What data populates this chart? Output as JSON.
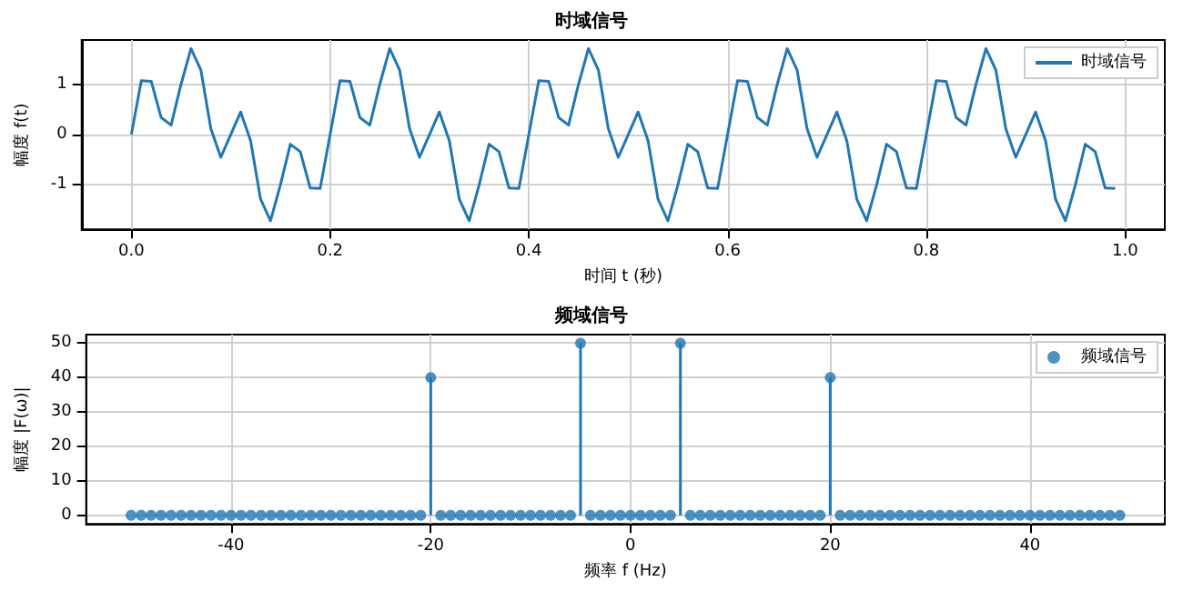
{
  "chart_data": [
    {
      "type": "line",
      "title": "时域信号",
      "xlabel": "时间 t (秒)",
      "ylabel": "幅度 f(t)",
      "xlim": [
        -0.05,
        1.04
      ],
      "ylim": [
        -1.88,
        1.88
      ],
      "xticks": [
        {
          "value": 0,
          "label": "0.0"
        },
        0.2,
        0.4,
        0.6,
        0.8,
        {
          "value": 1,
          "label": "1.0"
        }
      ],
      "yticks": [
        -1,
        0,
        1
      ],
      "grid": true,
      "legend": "top right",
      "marker": "none",
      "line_style": "solid",
      "series": [
        {
          "name": "时域信号",
          "color": "#1f77b4",
          "x": [
            0,
            0.01,
            0.02,
            0.03,
            0.04,
            0.05,
            0.06,
            0.07,
            0.08,
            0.09,
            0.1,
            0.11,
            0.12,
            0.13,
            0.14,
            0.15,
            0.16,
            0.17,
            0.18,
            0.19,
            0.2,
            0.21,
            0.22,
            0.23,
            0.24,
            0.25,
            0.26,
            0.27,
            0.28,
            0.29,
            0.3,
            0.31,
            0.32,
            0.33,
            0.34,
            0.35,
            0.36,
            0.37,
            0.38,
            0.39,
            0.4,
            0.41,
            0.42,
            0.43,
            0.44,
            0.45,
            0.46,
            0.47,
            0.48,
            0.49,
            0.5,
            0.51,
            0.52,
            0.53,
            0.54,
            0.55,
            0.56,
            0.57,
            0.58,
            0.59,
            0.6,
            0.61,
            0.62,
            0.63,
            0.64,
            0.65,
            0.66,
            0.67,
            0.68,
            0.69,
            0.7,
            0.71,
            0.72,
            0.73,
            0.74,
            0.75,
            0.76,
            0.77,
            0.78,
            0.79,
            0.8,
            0.81,
            0.82,
            0.83,
            0.84,
            0.85,
            0.86,
            0.87,
            0.88,
            0.89,
            0.9,
            0.91,
            0.92,
            0.93,
            0.94,
            0.95,
            0.96,
            0.97,
            0.98,
            0.99
          ],
          "values": [
            0,
            1.07,
            1.06,
            0.34,
            0.19,
            1,
            1.71,
            1.28,
            0.12,
            -0.45,
            0,
            0.45,
            -0.12,
            -1.28,
            -1.71,
            -1,
            -0.19,
            -0.34,
            -1.06,
            -1.07,
            0,
            1.07,
            1.06,
            0.34,
            0.19,
            1,
            1.71,
            1.28,
            0.12,
            -0.45,
            0,
            0.45,
            -0.12,
            -1.28,
            -1.71,
            -1,
            -0.19,
            -0.34,
            -1.06,
            -1.07,
            0,
            1.07,
            1.06,
            0.34,
            0.19,
            1,
            1.71,
            1.28,
            0.12,
            -0.45,
            0,
            0.45,
            -0.12,
            -1.28,
            -1.71,
            -1,
            -0.19,
            -0.34,
            -1.06,
            -1.07,
            0,
            1.07,
            1.06,
            0.34,
            0.19,
            1,
            1.71,
            1.28,
            0.12,
            -0.45,
            0,
            0.45,
            -0.12,
            -1.28,
            -1.71,
            -1,
            -0.19,
            -0.34,
            -1.06,
            -1.07,
            0,
            1.07,
            1.06,
            0.34,
            0.19,
            1,
            1.71,
            1.28,
            0.12,
            -0.45,
            0,
            0.45,
            -0.12,
            -1.28,
            -1.71,
            -1,
            -0.19,
            -0.34,
            -1.06,
            -1.07
          ]
        }
      ]
    },
    {
      "type": "lollipop",
      "title": "频域信号",
      "xlabel": "频率 f (Hz)",
      "ylabel": "幅度 |F(ω)|",
      "xlim": [
        -54.5,
        53.5
      ],
      "ylim": [
        -2.5,
        52.5
      ],
      "xticks": [
        -40,
        -20,
        0,
        20,
        40
      ],
      "yticks": [
        0,
        10,
        20,
        30,
        40,
        50
      ],
      "grid": true,
      "legend": "top right",
      "marker": "circle",
      "series": [
        {
          "name": "频域信号",
          "color": "#1f77b4",
          "x": [
            -50,
            -49,
            -48,
            -47,
            -46,
            -45,
            -44,
            -43,
            -42,
            -41,
            -40,
            -39,
            -38,
            -37,
            -36,
            -35,
            -34,
            -33,
            -32,
            -31,
            -30,
            -29,
            -28,
            -27,
            -26,
            -25,
            -24,
            -23,
            -22,
            -21,
            -20,
            -19,
            -18,
            -17,
            -16,
            -15,
            -14,
            -13,
            -12,
            -11,
            -10,
            -9,
            -8,
            -7,
            -6,
            -5,
            -4,
            -3,
            -2,
            -1,
            0,
            1,
            2,
            3,
            4,
            5,
            6,
            7,
            8,
            9,
            10,
            11,
            12,
            13,
            14,
            15,
            16,
            17,
            18,
            19,
            20,
            21,
            22,
            23,
            24,
            25,
            26,
            27,
            28,
            29,
            30,
            31,
            32,
            33,
            34,
            35,
            36,
            37,
            38,
            39,
            40,
            41,
            42,
            43,
            44,
            45,
            46,
            47,
            48,
            49
          ],
          "values": [
            0,
            0,
            0,
            0,
            0,
            0,
            0,
            0,
            0,
            0,
            0,
            0,
            0,
            0,
            0,
            0,
            0,
            0,
            0,
            0,
            0,
            0,
            0,
            0,
            0,
            0,
            0,
            0,
            0,
            0,
            40,
            0,
            0,
            0,
            0,
            0,
            0,
            0,
            0,
            0,
            0,
            0,
            0,
            0,
            0,
            50,
            0,
            0,
            0,
            0,
            0,
            0,
            0,
            0,
            0,
            50,
            0,
            0,
            0,
            0,
            0,
            0,
            0,
            0,
            0,
            0,
            0,
            0,
            0,
            0,
            40,
            0,
            0,
            0,
            0,
            0,
            0,
            0,
            0,
            0,
            0,
            0,
            0,
            0,
            0,
            0,
            0,
            0,
            0,
            0,
            0,
            0,
            0,
            0,
            0,
            0,
            0,
            0,
            0,
            0
          ]
        }
      ]
    }
  ]
}
